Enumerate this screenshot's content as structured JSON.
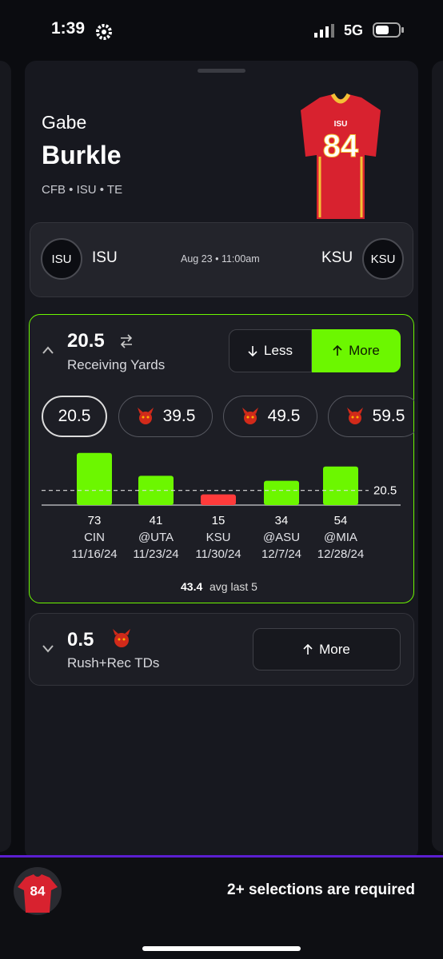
{
  "status_bar": {
    "time": "1:39",
    "network": "5G"
  },
  "player": {
    "first_name": "Gabe",
    "last_name": "Burkle",
    "details": "CFB • ISU  • TE",
    "jersey_team": "ISU",
    "jersey_number": "84"
  },
  "matchup": {
    "home_badge": "ISU",
    "home": "ISU",
    "time": "Aug 23 • 11:00am",
    "away": "KSU",
    "away_badge": "KSU"
  },
  "props": [
    {
      "line": 20.5,
      "stat": "Receiving Yards",
      "less": "Less",
      "more": "More",
      "alt_lines": [
        39.5,
        49.5,
        59.5
      ],
      "chart": {
        "type": "bar",
        "values": [
          73,
          41,
          15,
          34,
          54
        ],
        "opponents": [
          "CIN",
          "@UTA",
          "KSU",
          "@ASU",
          "@MIA"
        ],
        "dates": [
          "11/16/24",
          "11/23/24",
          "11/30/24",
          "12/7/24",
          "12/28/24"
        ],
        "ylim": [
          0,
          75
        ],
        "over_color": "#6cf700",
        "under_color": "#ff3b3b"
      },
      "avg": "43.4",
      "avg_label": "avg last 5"
    },
    {
      "line": 0.5,
      "stat": "Rush+Rec TDs",
      "more": "More"
    }
  ],
  "footer": {
    "jersey_number": "84",
    "message": "2+ selections are required"
  }
}
